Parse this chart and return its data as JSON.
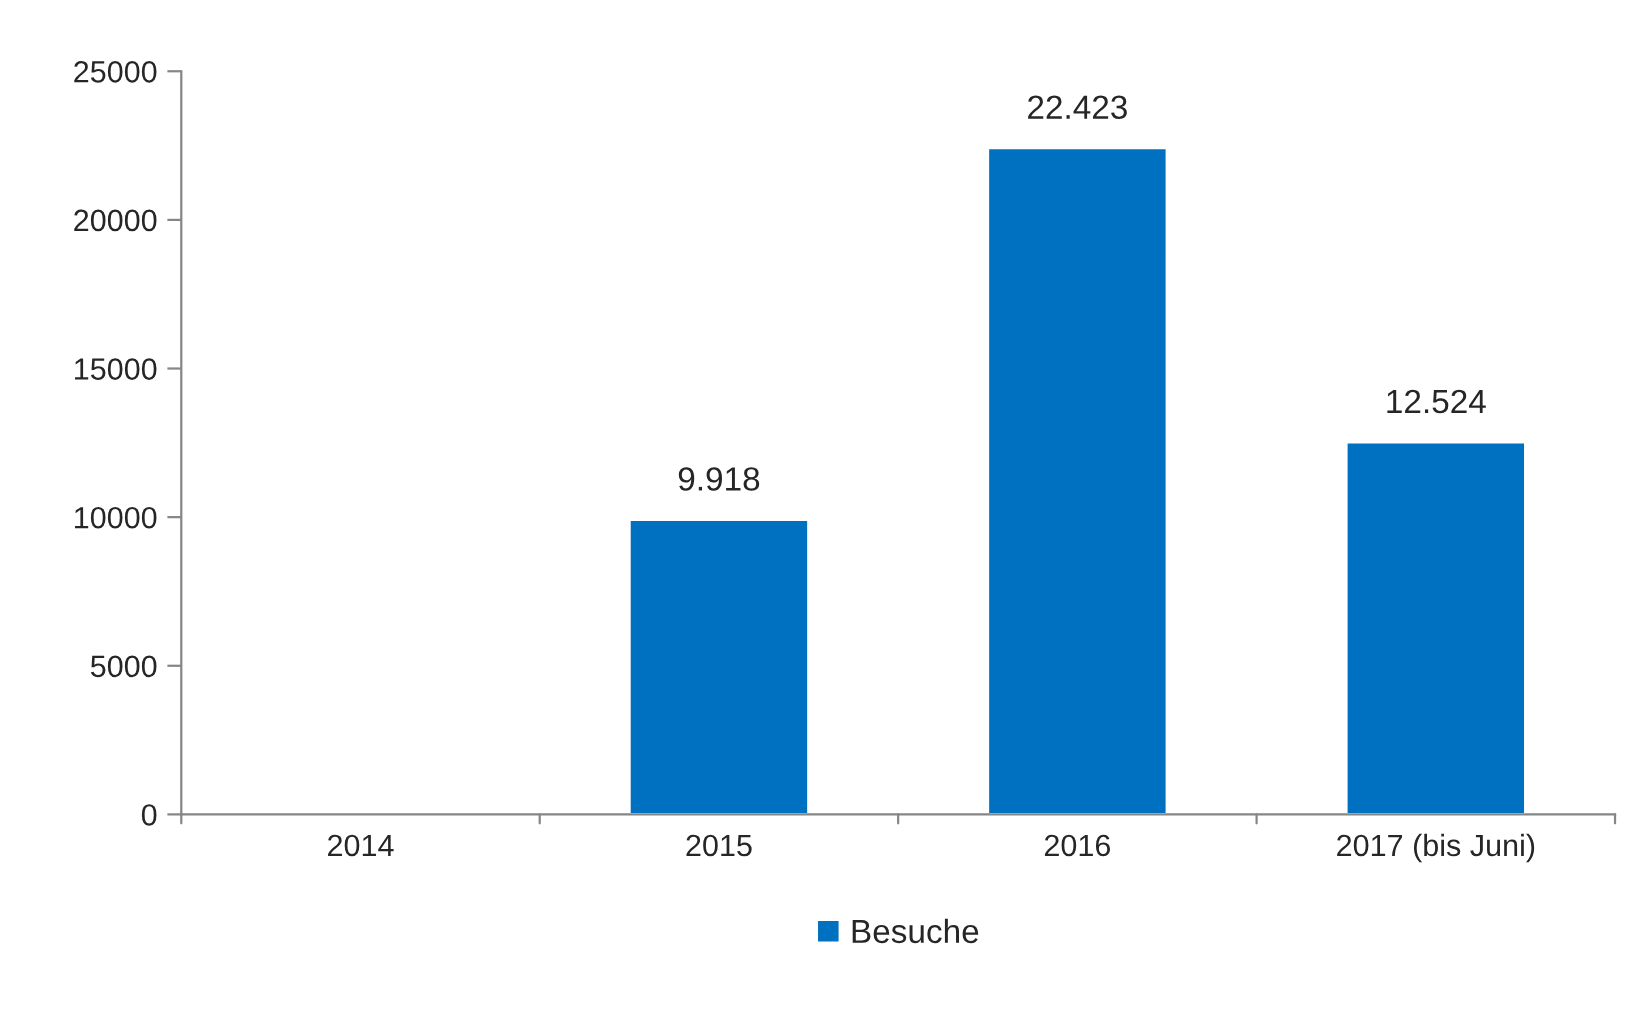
{
  "chart_data": {
    "type": "bar",
    "categories": [
      "2014",
      "2015",
      "2016",
      "2017 (bis Juni)"
    ],
    "series": [
      {
        "name": "Besuche",
        "color": "#0070c0",
        "values": [
          null,
          9918,
          22423,
          12524
        ],
        "value_labels": [
          null,
          "9.918",
          "22.423",
          "12.524"
        ]
      }
    ],
    "ylim": [
      0,
      25000
    ],
    "yticks": [
      0,
      5000,
      10000,
      15000,
      20000,
      25000
    ],
    "grid": false,
    "legend": "bottom"
  }
}
